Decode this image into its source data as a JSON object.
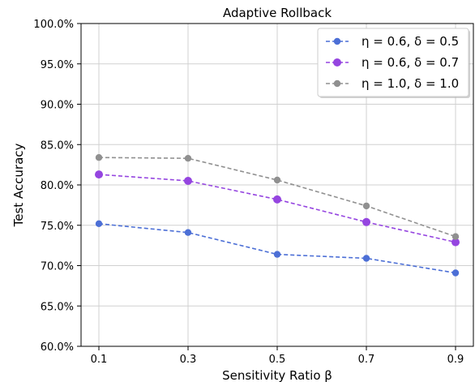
{
  "chart_data": {
    "type": "line",
    "title": "Adaptive Rollback",
    "xlabel": "Sensitivity Ratio β",
    "ylabel": "Test Accuracy",
    "categories": [
      "0.1",
      "0.3",
      "0.5",
      "0.7",
      "0.9"
    ],
    "ylim": [
      60.0,
      100.0
    ],
    "yticks": [
      "60.0%",
      "65.0%",
      "70.0%",
      "75.0%",
      "80.0%",
      "85.0%",
      "90.0%",
      "95.0%",
      "100.0%"
    ],
    "grid": true,
    "legend_position": "top-right",
    "series": [
      {
        "name": "η = 0.6, δ = 0.5",
        "color": "#4c6fd6",
        "values": [
          75.2,
          74.1,
          71.4,
          70.9,
          69.1
        ]
      },
      {
        "name": "η = 0.6, δ = 0.7",
        "color": "#9545e0",
        "values": [
          81.3,
          80.5,
          78.2,
          75.4,
          72.9
        ]
      },
      {
        "name": "η = 1.0, δ = 1.0",
        "color": "#909090",
        "values": [
          83.4,
          83.3,
          80.6,
          77.4,
          73.6
        ]
      }
    ]
  }
}
